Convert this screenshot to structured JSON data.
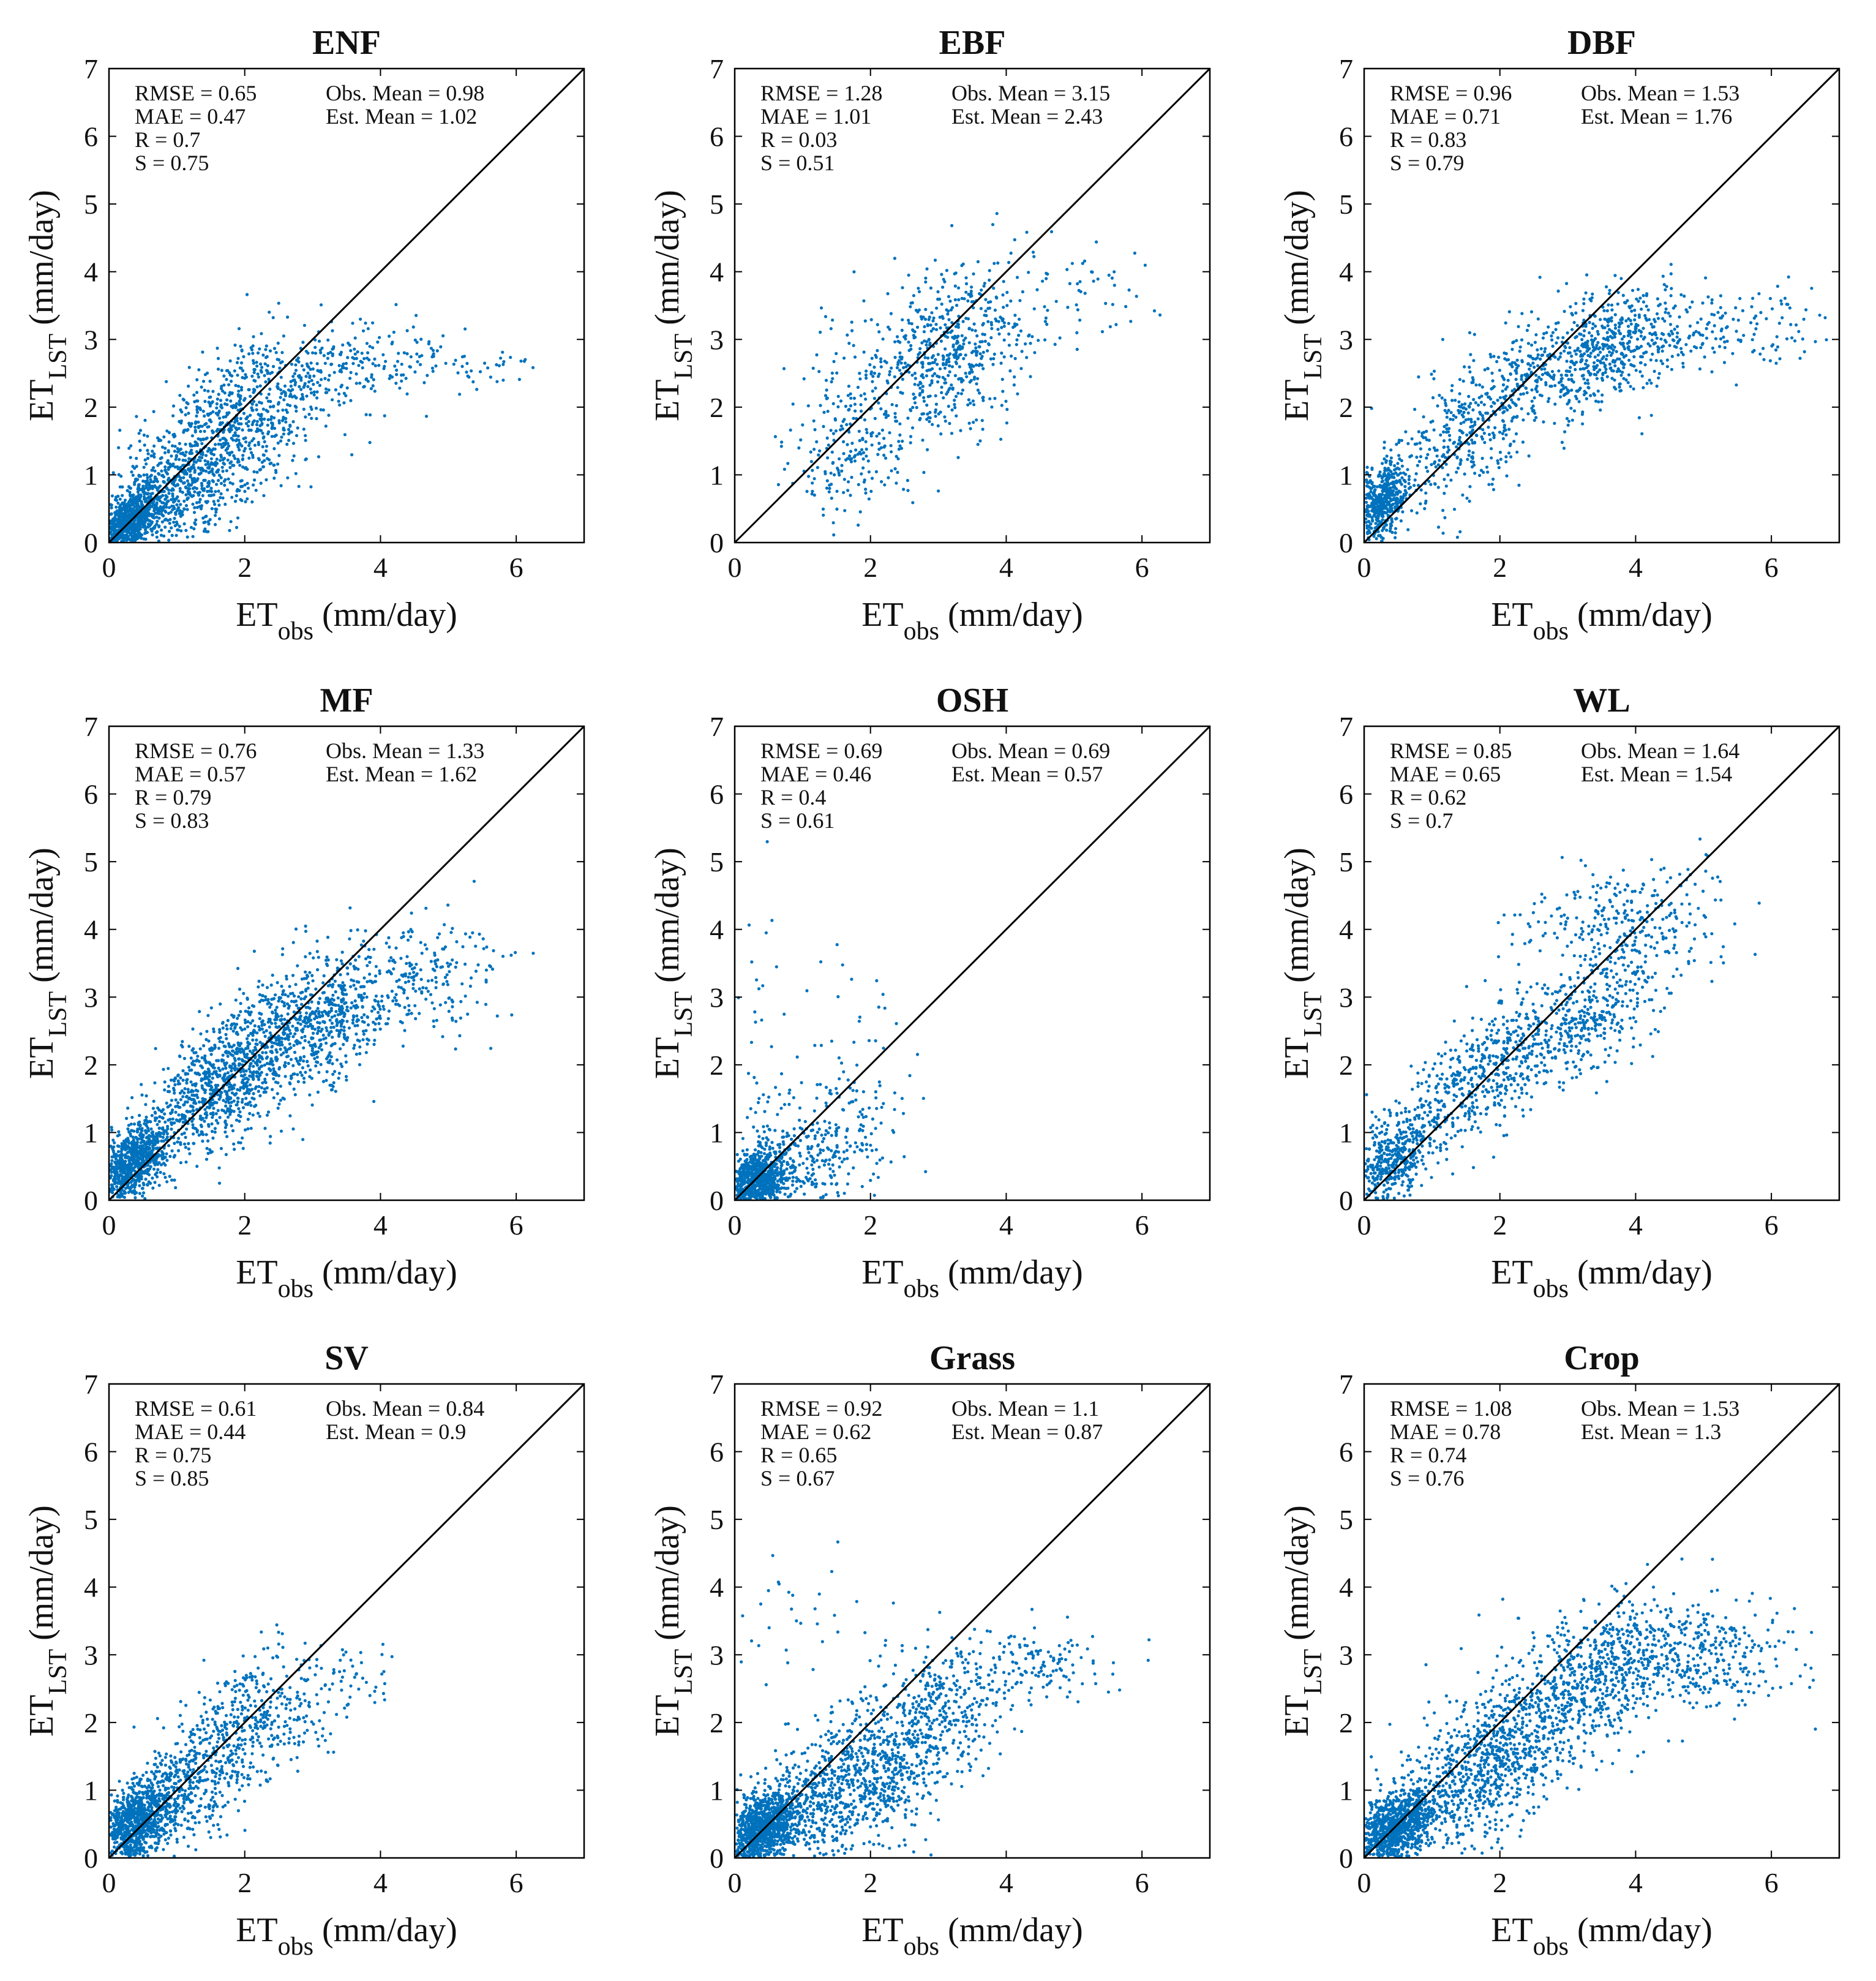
{
  "figure": {
    "colors": {
      "points": "#0072BD",
      "axes": "#000000",
      "identity_line": "#000000",
      "background": "#ffffff"
    },
    "x_label": {
      "base": "ET",
      "subscript": "obs",
      "unit": "(mm/day)"
    },
    "y_label": {
      "base": "ET",
      "subscript": "LST",
      "unit": "(mm/day)"
    },
    "x_ticks": [
      "0",
      "2",
      "4",
      "6"
    ],
    "y_ticks": [
      "0",
      "1",
      "2",
      "3",
      "4",
      "5",
      "6",
      "7"
    ]
  },
  "chart_data": [
    {
      "type": "scatter",
      "title": "ENF",
      "xlabel": "ET_obs (mm/day)",
      "ylabel": "ET_LST (mm/day)",
      "xlim": [
        0,
        7
      ],
      "ylim": [
        0,
        7
      ],
      "identity_line": true,
      "stats": {
        "rmse": "RMSE = 0.65",
        "mae": "MAE = 0.47",
        "r": "R = 0.7",
        "s": "S = 0.75",
        "obs_mean": "Obs. Mean = 0.98",
        "est_mean": "Est. Mean = 1.02"
      },
      "clusters": [
        {
          "n": 900,
          "cx": 0.3,
          "cy": 0.3,
          "sx": 0.25,
          "sy": 0.28,
          "rho": 0.6
        },
        {
          "n": 800,
          "cx": 1.2,
          "cy": 1.0,
          "sx": 0.55,
          "sy": 0.6,
          "rho": 0.45
        },
        {
          "n": 450,
          "cx": 2.2,
          "cy": 2.0,
          "sx": 0.55,
          "sy": 0.55,
          "rho": 0.3
        },
        {
          "n": 200,
          "cx": 3.6,
          "cy": 2.6,
          "sx": 0.7,
          "sy": 0.3,
          "rho": 0.1
        },
        {
          "n": 35,
          "cx": 5.5,
          "cy": 2.6,
          "sx": 0.6,
          "sy": 0.2,
          "rho": 0
        }
      ]
    },
    {
      "type": "scatter",
      "title": "EBF",
      "xlabel": "ET_obs (mm/day)",
      "ylabel": "ET_LST (mm/day)",
      "xlim": [
        0,
        7
      ],
      "ylim": [
        0,
        7
      ],
      "identity_line": true,
      "stats": {
        "rmse": "RMSE = 1.28",
        "mae": "MAE = 1.01",
        "r": "R = 0.03",
        "s": "S = 0.51",
        "obs_mean": "Obs. Mean = 3.15",
        "est_mean": "Est. Mean = 2.43"
      },
      "clusters": [
        {
          "n": 200,
          "cx": 2.0,
          "cy": 2.0,
          "sx": 0.55,
          "sy": 0.8,
          "rho": 0.2
        },
        {
          "n": 500,
          "cx": 3.2,
          "cy": 2.8,
          "sx": 0.5,
          "sy": 0.6,
          "rho": 0.2
        },
        {
          "n": 80,
          "cx": 4.8,
          "cy": 3.6,
          "sx": 0.9,
          "sy": 0.4,
          "rho": 0
        },
        {
          "n": 100,
          "cx": 1.6,
          "cy": 1.2,
          "sx": 0.4,
          "sy": 0.45,
          "rho": 0.1
        }
      ]
    },
    {
      "type": "scatter",
      "title": "DBF",
      "xlabel": "ET_obs (mm/day)",
      "ylabel": "ET_LST (mm/day)",
      "xlim": [
        0,
        7
      ],
      "ylim": [
        0,
        7
      ],
      "identity_line": true,
      "stats": {
        "rmse": "RMSE = 0.96",
        "mae": "MAE = 0.71",
        "r": "R = 0.83",
        "s": "S = 0.79",
        "obs_mean": "Obs. Mean = 1.53",
        "est_mean": "Est. Mean = 1.76"
      },
      "clusters": [
        {
          "n": 550,
          "cx": 0.25,
          "cy": 0.6,
          "sx": 0.2,
          "sy": 0.3,
          "rho": 0.3
        },
        {
          "n": 400,
          "cx": 1.6,
          "cy": 1.7,
          "sx": 0.6,
          "sy": 0.6,
          "rho": 0.5
        },
        {
          "n": 650,
          "cx": 3.4,
          "cy": 2.8,
          "sx": 0.7,
          "sy": 0.45,
          "rho": 0.4
        },
        {
          "n": 150,
          "cx": 5.3,
          "cy": 3.2,
          "sx": 0.7,
          "sy": 0.3,
          "rho": 0
        }
      ]
    },
    {
      "type": "scatter",
      "title": "MF",
      "xlabel": "ET_obs (mm/day)",
      "ylabel": "ET_LST (mm/day)",
      "xlim": [
        0,
        7
      ],
      "ylim": [
        0,
        7
      ],
      "identity_line": true,
      "stats": {
        "rmse": "RMSE = 0.76",
        "mae": "MAE = 0.57",
        "r": "R = 0.79",
        "s": "S = 0.83",
        "obs_mean": "Obs. Mean = 1.33",
        "est_mean": "Est. Mean = 1.62"
      },
      "clusters": [
        {
          "n": 800,
          "cx": 0.35,
          "cy": 0.55,
          "sx": 0.25,
          "sy": 0.3,
          "rho": 0.5
        },
        {
          "n": 900,
          "cx": 1.6,
          "cy": 1.7,
          "sx": 0.6,
          "sy": 0.6,
          "rho": 0.65
        },
        {
          "n": 700,
          "cx": 3.0,
          "cy": 2.6,
          "sx": 0.6,
          "sy": 0.55,
          "rho": 0.4
        },
        {
          "n": 200,
          "cx": 4.6,
          "cy": 3.3,
          "sx": 0.65,
          "sy": 0.4,
          "rho": 0.1
        }
      ]
    },
    {
      "type": "scatter",
      "title": "OSH",
      "xlabel": "ET_obs (mm/day)",
      "ylabel": "ET_LST (mm/day)",
      "xlim": [
        0,
        7
      ],
      "ylim": [
        0,
        7
      ],
      "identity_line": true,
      "stats": {
        "rmse": "RMSE = 0.69",
        "mae": "MAE = 0.46",
        "r": "R = 0.4",
        "s": "S = 0.61",
        "obs_mean": "Obs. Mean = 0.69",
        "est_mean": "Est. Mean = 0.57"
      },
      "clusters": [
        {
          "n": 900,
          "cx": 0.3,
          "cy": 0.25,
          "sx": 0.25,
          "sy": 0.25,
          "rho": 0.3
        },
        {
          "n": 350,
          "cx": 1.2,
          "cy": 0.7,
          "sx": 0.55,
          "sy": 0.5,
          "rho": 0.2
        },
        {
          "n": 40,
          "cx": 0.3,
          "cy": 2.8,
          "sx": 0.25,
          "sy": 1.0,
          "rho": 0
        },
        {
          "n": 30,
          "cx": 1.8,
          "cy": 2.3,
          "sx": 0.5,
          "sy": 0.8,
          "rho": 0
        }
      ]
    },
    {
      "type": "scatter",
      "title": "WL",
      "xlabel": "ET_obs (mm/day)",
      "ylabel": "ET_LST (mm/day)",
      "xlim": [
        0,
        7
      ],
      "ylim": [
        0,
        7
      ],
      "identity_line": true,
      "stats": {
        "rmse": "RMSE = 0.85",
        "mae": "MAE = 0.65",
        "r": "R = 0.62",
        "s": "S = 0.7",
        "obs_mean": "Obs. Mean = 1.64",
        "est_mean": "Est. Mean = 1.54"
      },
      "clusters": [
        {
          "n": 450,
          "cx": 0.4,
          "cy": 0.6,
          "sx": 0.3,
          "sy": 0.35,
          "rho": 0.4
        },
        {
          "n": 500,
          "cx": 1.8,
          "cy": 1.9,
          "sx": 0.6,
          "sy": 0.55,
          "rho": 0.6
        },
        {
          "n": 400,
          "cx": 3.4,
          "cy": 2.8,
          "sx": 0.6,
          "sy": 0.55,
          "rho": 0.5
        },
        {
          "n": 250,
          "cx": 3.9,
          "cy": 4.2,
          "sx": 0.8,
          "sy": 0.4,
          "rho": 0.2
        }
      ]
    },
    {
      "type": "scatter",
      "title": "SV",
      "xlabel": "ET_obs (mm/day)",
      "ylabel": "ET_LST (mm/day)",
      "xlim": [
        0,
        7
      ],
      "ylim": [
        0,
        7
      ],
      "identity_line": true,
      "stats": {
        "rmse": "RMSE = 0.61",
        "mae": "MAE = 0.44",
        "r": "R = 0.75",
        "s": "S = 0.85",
        "obs_mean": "Obs. Mean = 0.84",
        "est_mean": "Est. Mean = 0.9"
      },
      "clusters": [
        {
          "n": 1000,
          "cx": 0.4,
          "cy": 0.5,
          "sx": 0.3,
          "sy": 0.35,
          "rho": 0.5
        },
        {
          "n": 450,
          "cx": 1.4,
          "cy": 1.3,
          "sx": 0.45,
          "sy": 0.55,
          "rho": 0.45
        },
        {
          "n": 250,
          "cx": 2.4,
          "cy": 2.2,
          "sx": 0.5,
          "sy": 0.45,
          "rho": 0.2
        },
        {
          "n": 40,
          "cx": 3.6,
          "cy": 2.7,
          "sx": 0.35,
          "sy": 0.3,
          "rho": 0
        }
      ]
    },
    {
      "type": "scatter",
      "title": "Grass",
      "xlabel": "ET_obs (mm/day)",
      "ylabel": "ET_LST (mm/day)",
      "xlim": [
        0,
        7
      ],
      "ylim": [
        0,
        7
      ],
      "identity_line": true,
      "stats": {
        "rmse": "RMSE = 0.92",
        "mae": "MAE = 0.62",
        "r": "R = 0.65",
        "s": "S = 0.67",
        "obs_mean": "Obs. Mean = 1.1",
        "est_mean": "Est. Mean = 0.87"
      },
      "clusters": [
        {
          "n": 1100,
          "cx": 0.4,
          "cy": 0.4,
          "sx": 0.3,
          "sy": 0.3,
          "rho": 0.4
        },
        {
          "n": 700,
          "cx": 1.7,
          "cy": 1.0,
          "sx": 0.6,
          "sy": 0.55,
          "rho": 0.35
        },
        {
          "n": 450,
          "cx": 2.8,
          "cy": 2.0,
          "sx": 0.6,
          "sy": 0.55,
          "rho": 0.3
        },
        {
          "n": 150,
          "cx": 4.3,
          "cy": 2.8,
          "sx": 0.6,
          "sy": 0.3,
          "rho": 0
        },
        {
          "n": 30,
          "cx": 0.8,
          "cy": 3.6,
          "sx": 0.5,
          "sy": 0.5,
          "rho": 0
        }
      ]
    },
    {
      "type": "scatter",
      "title": "Crop",
      "xlabel": "ET_obs (mm/day)",
      "ylabel": "ET_LST (mm/day)",
      "xlim": [
        0,
        7
      ],
      "ylim": [
        0,
        7
      ],
      "identity_line": true,
      "stats": {
        "rmse": "RMSE = 1.08",
        "mae": "MAE = 0.78",
        "r": "R = 0.74",
        "s": "S = 0.76",
        "obs_mean": "Obs. Mean = 1.53",
        "est_mean": "Est. Mean = 1.3"
      },
      "clusters": [
        {
          "n": 1000,
          "cx": 0.45,
          "cy": 0.45,
          "sx": 0.3,
          "sy": 0.3,
          "rho": 0.5
        },
        {
          "n": 800,
          "cx": 1.8,
          "cy": 1.4,
          "sx": 0.6,
          "sy": 0.6,
          "rho": 0.5
        },
        {
          "n": 700,
          "cx": 3.4,
          "cy": 2.6,
          "sx": 0.7,
          "sy": 0.55,
          "rho": 0.4
        },
        {
          "n": 300,
          "cx": 5.0,
          "cy": 3.0,
          "sx": 0.7,
          "sy": 0.4,
          "rho": 0
        }
      ]
    }
  ]
}
